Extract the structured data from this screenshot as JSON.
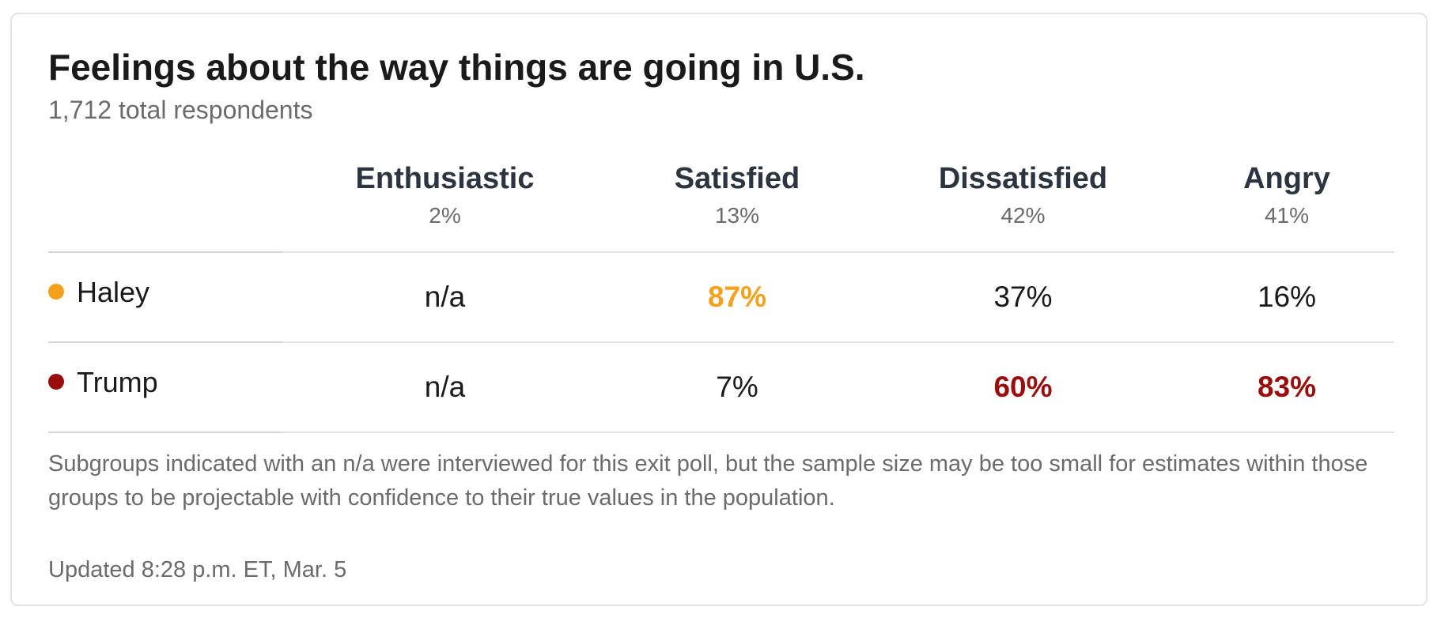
{
  "header": {
    "title": "Feelings about the way things are going in U.S.",
    "subtitle": "1,712 total respondents"
  },
  "colors": {
    "haley": "#f5a11c",
    "trump": "#9b0d0d"
  },
  "chart_data": {
    "type": "table",
    "title": "Feelings about the way things are going in U.S.",
    "subtitle": "1,712 total respondents",
    "columns": [
      {
        "label": "Enthusiastic",
        "share": "2%"
      },
      {
        "label": "Satisfied",
        "share": "13%"
      },
      {
        "label": "Dissatisfied",
        "share": "42%"
      },
      {
        "label": "Angry",
        "share": "41%"
      }
    ],
    "rows": [
      {
        "name": "Haley",
        "color": "#f5a11c",
        "values": [
          "n/a",
          "87%",
          "37%",
          "16%"
        ],
        "highlight": [
          false,
          true,
          false,
          false
        ]
      },
      {
        "name": "Trump",
        "color": "#9b0d0d",
        "values": [
          "n/a",
          "7%",
          "60%",
          "83%"
        ],
        "highlight": [
          false,
          false,
          true,
          true
        ]
      }
    ]
  },
  "footer": {
    "note": "Subgroups indicated with an n/a were interviewed for this exit poll, but the sample size may be too small for estimates within those groups to be projectable with confidence to their true values in the population.",
    "updated": "Updated 8:28 p.m. ET, Mar. 5"
  }
}
